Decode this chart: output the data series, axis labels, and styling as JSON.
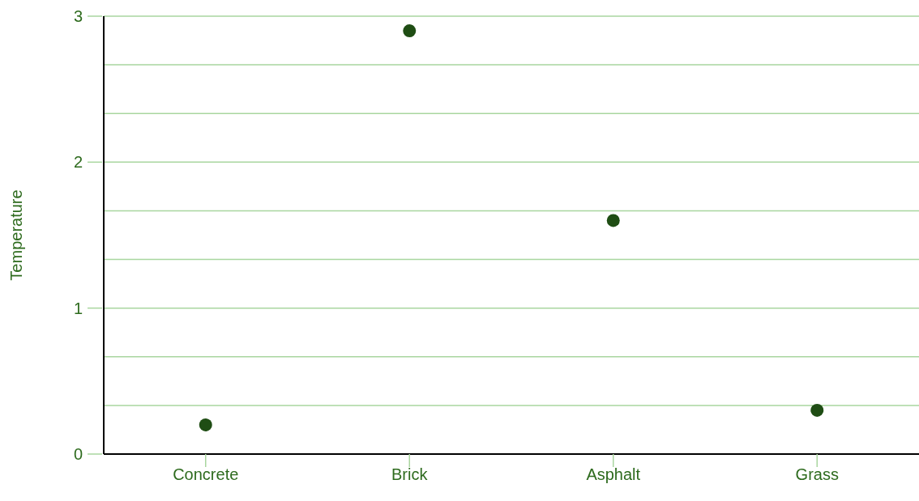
{
  "chart_data": {
    "type": "scatter",
    "ylabel": "Temperature",
    "categories": [
      "Concrete",
      "Brick",
      "Asphalt",
      "Grass"
    ],
    "values": [
      0.2,
      2.9,
      1.6,
      0.3
    ],
    "color": "#1f4d14",
    "ylim": [
      0,
      3
    ],
    "yticks": [
      0,
      {
        "value": 0.333,
        "label": null
      },
      {
        "value": 0.667,
        "label": null
      },
      1,
      {
        "value": 1.333,
        "label": null
      },
      {
        "value": 1.667,
        "label": null
      },
      2,
      {
        "value": 2.333,
        "label": null
      },
      {
        "value": 2.667,
        "label": null
      },
      3
    ],
    "grid": "y",
    "marker": "circle"
  }
}
